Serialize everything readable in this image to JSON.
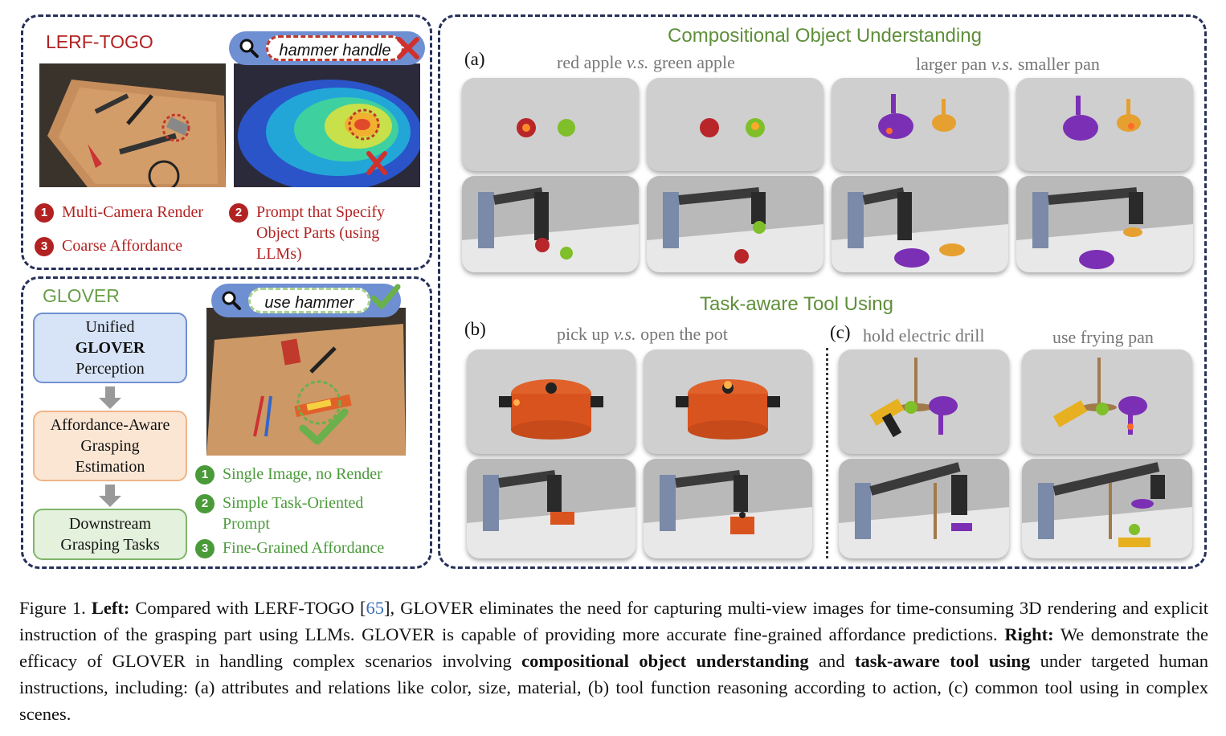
{
  "left_top": {
    "title": "LERF-TOGO",
    "query": "hammer handle",
    "items": [
      {
        "num": "1",
        "text": "Multi-Camera Render"
      },
      {
        "num": "2",
        "text": "Prompt that Specify Object Parts (using LLMs)"
      },
      {
        "num": "3",
        "text": "Coarse Affordance"
      }
    ]
  },
  "left_bottom": {
    "title": "GLOVER",
    "query": "use hammer",
    "flow": {
      "box1_line1": "Unified",
      "box1_line2": "GLOVER",
      "box1_line3": "Perception",
      "box2": "Affordance-Aware Grasping Estimation",
      "box3": "Downstream Grasping Tasks"
    },
    "items": [
      {
        "num": "1",
        "text": "Single Image, no Render"
      },
      {
        "num": "2",
        "text": "Simple Task-Oriented Prompt"
      },
      {
        "num": "3",
        "text": "Fine-Grained Affordance"
      }
    ]
  },
  "right": {
    "section1": "Compositional Object Understanding",
    "section2": "Task-aware Tool Using",
    "a_label": "(a)",
    "a_cap1_pre": "red apple ",
    "a_cap1_vs": "v.s.",
    "a_cap1_post": " green apple",
    "a_cap2_pre": "larger pan ",
    "a_cap2_vs": "v.s.",
    "a_cap2_post": " smaller pan",
    "b_label": "(b)",
    "b_cap_pre": "pick up ",
    "b_cap_vs": "v.s.",
    "b_cap_post": " open the pot",
    "c_label": "(c)",
    "c_cap1": "hold electric drill",
    "c_cap2": "use frying pan"
  },
  "caption": {
    "fig": "Figure 1.",
    "left_label": "Left:",
    "t1": "Compared with LERF-TOGO [",
    "cite": "65",
    "t2": "], GLOVER eliminates the need for capturing multi-view images for time-consuming 3D rendering and explicit instruction of the grasping part using LLMs. GLOVER is capable of providing more accurate fine-grained affordance predictions.",
    "right_label": "Right:",
    "t3": "We demonstrate the efficacy of GLOVER in handling complex scenarios involving",
    "b1": "compositional object understanding",
    "t4": "and",
    "b2": "task-aware tool using",
    "t5": "under targeted human instructions, including: (a) attributes and relations like color, size, material, (b) tool function reasoning according to action, (c) common tool using in complex scenes."
  },
  "colors": {
    "frame": "#27305a",
    "lerf_red": "#b22222",
    "glover_green": "#4a9a3a",
    "title_green": "#5f8f3a",
    "search_blue": "#6f8fd3",
    "box_blue": "#d7e3f6",
    "box_orange": "#fbe6d4",
    "box_green": "#e3f1dd"
  }
}
